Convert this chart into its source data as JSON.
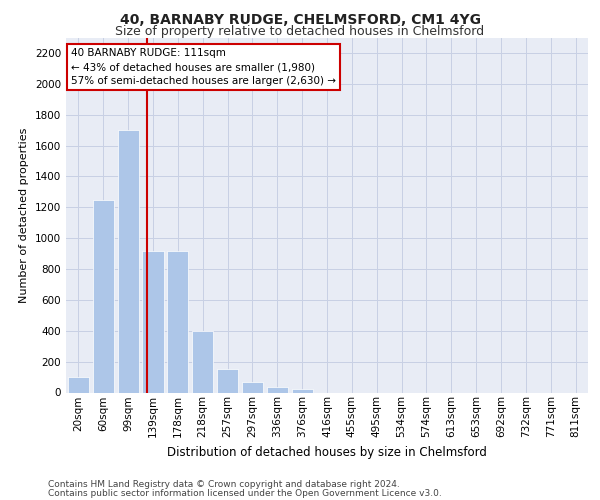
{
  "title1": "40, BARNABY RUDGE, CHELMSFORD, CM1 4YG",
  "title2": "Size of property relative to detached houses in Chelmsford",
  "xlabel": "Distribution of detached houses by size in Chelmsford",
  "ylabel": "Number of detached properties",
  "footnote1": "Contains HM Land Registry data © Crown copyright and database right 2024.",
  "footnote2": "Contains public sector information licensed under the Open Government Licence v3.0.",
  "annotation_title": "40 BARNABY RUDGE: 111sqm",
  "annotation_line1": "← 43% of detached houses are smaller (1,980)",
  "annotation_line2": "57% of semi-detached houses are larger (2,630) →",
  "bin_labels": [
    "20sqm",
    "60sqm",
    "99sqm",
    "139sqm",
    "178sqm",
    "218sqm",
    "257sqm",
    "297sqm",
    "336sqm",
    "376sqm",
    "416sqm",
    "455sqm",
    "495sqm",
    "534sqm",
    "574sqm",
    "613sqm",
    "653sqm",
    "692sqm",
    "732sqm",
    "771sqm",
    "811sqm"
  ],
  "bar_values": [
    100,
    1250,
    1700,
    920,
    920,
    400,
    150,
    65,
    35,
    25,
    0,
    0,
    0,
    0,
    0,
    0,
    0,
    0,
    0,
    0,
    0
  ],
  "bar_color": "#adc6e8",
  "redline_bar_index": 2.75,
  "ylim": [
    0,
    2300
  ],
  "yticks": [
    0,
    200,
    400,
    600,
    800,
    1000,
    1200,
    1400,
    1600,
    1800,
    2000,
    2200
  ],
  "grid_color": "#c8d0e4",
  "bg_color": "#e8ecf5",
  "annotation_box_facecolor": "#ffffff",
  "annotation_box_edgecolor": "#cc0000",
  "redline_color": "#cc0000",
  "title1_fontsize": 10,
  "title2_fontsize": 9,
  "xlabel_fontsize": 8.5,
  "ylabel_fontsize": 8,
  "tick_fontsize": 7.5,
  "footnote_fontsize": 6.5,
  "annotation_fontsize": 7.5
}
